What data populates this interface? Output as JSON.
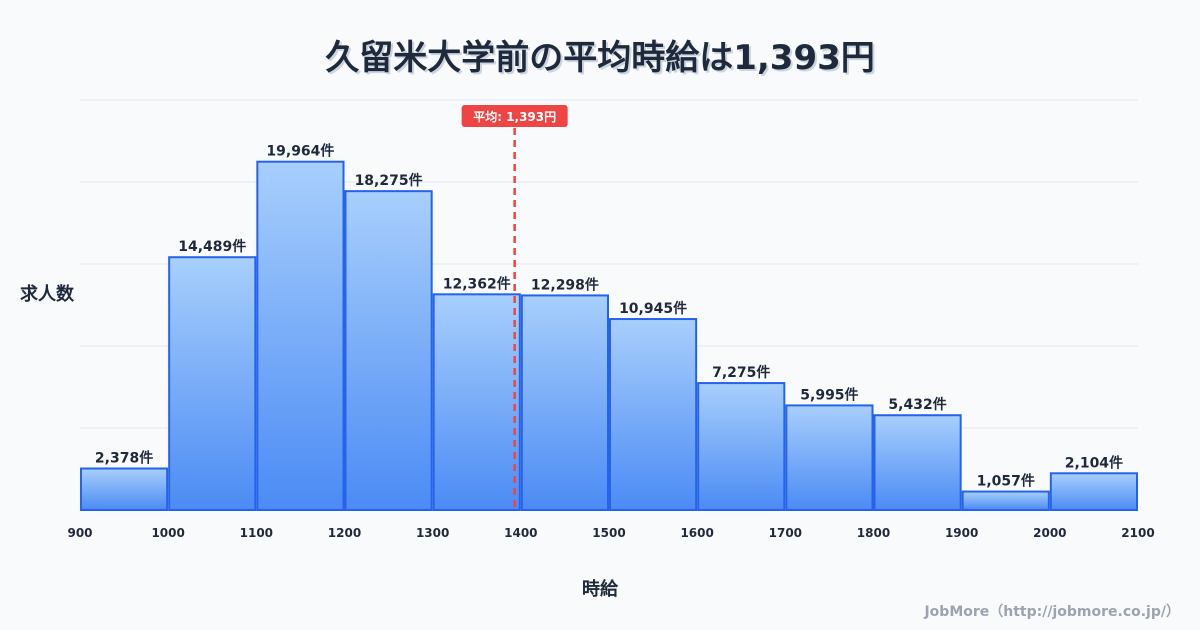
{
  "chart_data": {
    "type": "bar",
    "title": "久留米大学前の平均時給は1,393円",
    "xlabel": "時給",
    "ylabel": "求人数",
    "bin_edges": [
      900,
      1000,
      1100,
      1200,
      1300,
      1400,
      1500,
      1600,
      1700,
      1800,
      1900,
      2000,
      2100
    ],
    "values": [
      2378,
      14489,
      19964,
      18275,
      12362,
      12298,
      10945,
      7275,
      5995,
      5432,
      1057,
      2104
    ],
    "value_labels": [
      "2,378件",
      "14,489件",
      "19,964件",
      "18,275件",
      "12,362件",
      "12,298件",
      "10,945件",
      "7,275件",
      "5,995件",
      "5,432件",
      "1,057件",
      "2,104件"
    ],
    "x_ticks": [
      "900",
      "1000",
      "1100",
      "1200",
      "1300",
      "1400",
      "1500",
      "1600",
      "1700",
      "1800",
      "1900",
      "2000",
      "2100"
    ],
    "xlim": [
      900,
      2100
    ],
    "ylim": [
      0,
      23500
    ],
    "grid": true,
    "mean": {
      "value": 1393,
      "label": "平均: 1,393円"
    },
    "colors": {
      "bar_top": "#a8cffc",
      "bar_bottom": "#4b8bf4",
      "bar_stroke": "#2563eb",
      "mean": "#ef4444",
      "grid": "#e2e8f0"
    }
  },
  "credit": "JobMore（http://jobmore.co.jp/）"
}
